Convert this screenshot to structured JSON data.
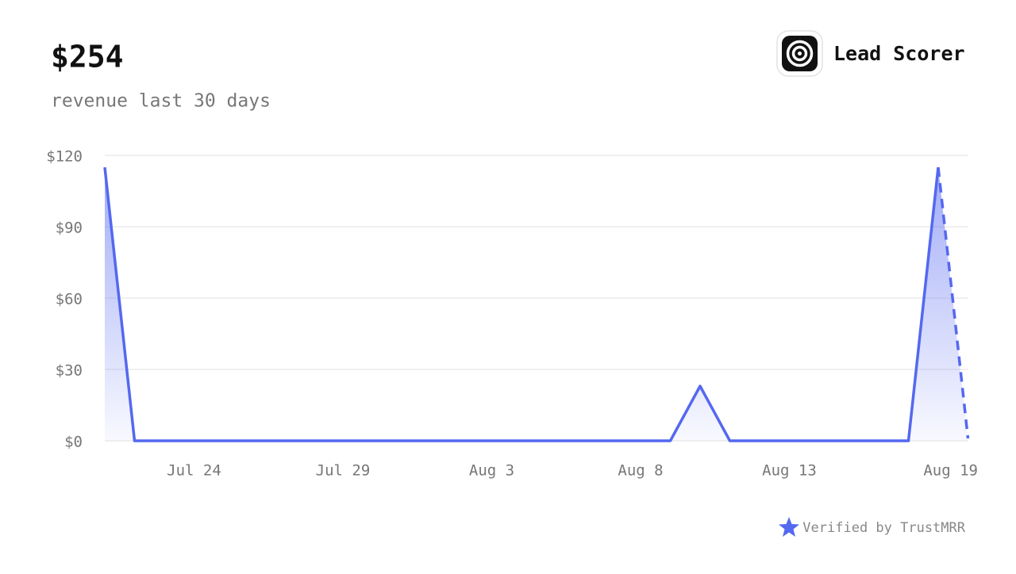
{
  "chart_data": {
    "type": "line",
    "title": "$254",
    "subtitle": "revenue last 30 days",
    "product": "Lead Scorer",
    "footer": "Verified by TrustMRR",
    "categories": [
      null,
      null,
      null,
      "Jul 24",
      null,
      null,
      null,
      null,
      "Jul 29",
      null,
      null,
      null,
      null,
      "Aug 3",
      null,
      null,
      null,
      null,
      "Aug 8",
      null,
      null,
      null,
      null,
      "Aug 13",
      null,
      null,
      null,
      null,
      null,
      "Aug 19"
    ],
    "values": [
      115,
      0,
      0,
      0,
      0,
      0,
      0,
      0,
      0,
      0,
      0,
      0,
      0,
      0,
      0,
      0,
      0,
      0,
      0,
      0,
      23,
      0,
      0,
      0,
      0,
      0,
      0,
      0,
      115,
      1
    ],
    "color": "#5468f0",
    "last_segment_dashed": true,
    "ylim": [
      0,
      120
    ],
    "yticks": [
      {
        "value": 0,
        "label": "$0"
      },
      {
        "value": 30,
        "label": "$30"
      },
      {
        "value": 60,
        "label": "$60"
      },
      {
        "value": 90,
        "label": "$90"
      },
      {
        "value": 120,
        "label": "$120"
      }
    ],
    "grid": true
  }
}
